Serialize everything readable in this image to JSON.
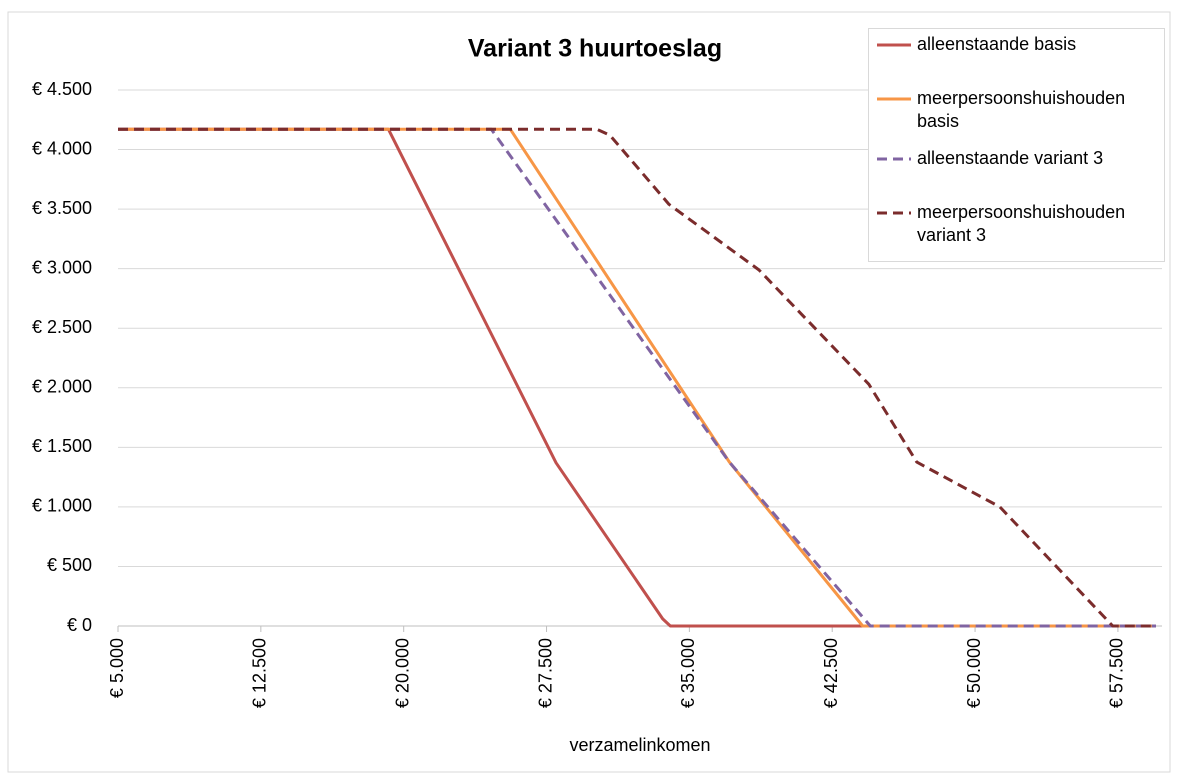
{
  "chart_data": {
    "type": "line",
    "title": "Variant 3 huurtoeslag",
    "x_label": "verzamelinkomen",
    "xlim": [
      5000,
      59500
    ],
    "ylim": [
      0,
      4500
    ],
    "grid": true,
    "legend": "top-right",
    "xticks": [
      {
        "value": 5000,
        "label": "€ 5.000"
      },
      {
        "value": 12500,
        "label": "€ 12.500"
      },
      {
        "value": 20000,
        "label": "€ 20.000"
      },
      {
        "value": 27500,
        "label": "€ 27.500"
      },
      {
        "value": 35000,
        "label": "€ 35.000"
      },
      {
        "value": 42500,
        "label": "€ 42.500"
      },
      {
        "value": 50000,
        "label": "€ 50.000"
      },
      {
        "value": 57500,
        "label": "€ 57.500"
      }
    ],
    "yticks": [
      {
        "value": 0,
        "label": "€ 0"
      },
      {
        "value": 500,
        "label": "€ 500"
      },
      {
        "value": 1000,
        "label": "€ 1.000"
      },
      {
        "value": 1500,
        "label": "€ 1.500"
      },
      {
        "value": 2000,
        "label": "€ 2.000"
      },
      {
        "value": 2500,
        "label": "€ 2.500"
      },
      {
        "value": 3000,
        "label": "€ 3.000"
      },
      {
        "value": 3500,
        "label": "€ 3.500"
      },
      {
        "value": 4000,
        "label": "€ 4.000"
      },
      {
        "value": 4500,
        "label": "€ 4.500"
      }
    ],
    "series": [
      {
        "name": "alleenstaande basis",
        "color": "#c0504d",
        "dash": false,
        "x": [
          5000,
          19200,
          28000,
          33600,
          34000,
          59500
        ],
        "values": [
          4170,
          4170,
          1370,
          60,
          0,
          0
        ]
      },
      {
        "name": "meerpersoonshuishouden basis",
        "color": "#f79646",
        "dash": false,
        "x": [
          5000,
          25600,
          37100,
          44100,
          59500
        ],
        "values": [
          4170,
          4170,
          1376,
          0,
          0
        ]
      },
      {
        "name": "alleenstaande variant 3",
        "color": "#8064a2",
        "dash": true,
        "x": [
          5000,
          24600,
          37100,
          44500,
          59500
        ],
        "values": [
          4170,
          4170,
          1376,
          0,
          0
        ]
      },
      {
        "name": "meerpersoonshuishouden variant 3",
        "color": "#7b2c2c",
        "dash": true,
        "x": [
          5000,
          30150,
          30830,
          33930,
          38650,
          44420,
          46940,
          51300,
          57230,
          59500
        ],
        "values": [
          4170,
          4170,
          4120,
          3540,
          2990,
          2030,
          1376,
          1000,
          0,
          0
        ]
      }
    ]
  }
}
